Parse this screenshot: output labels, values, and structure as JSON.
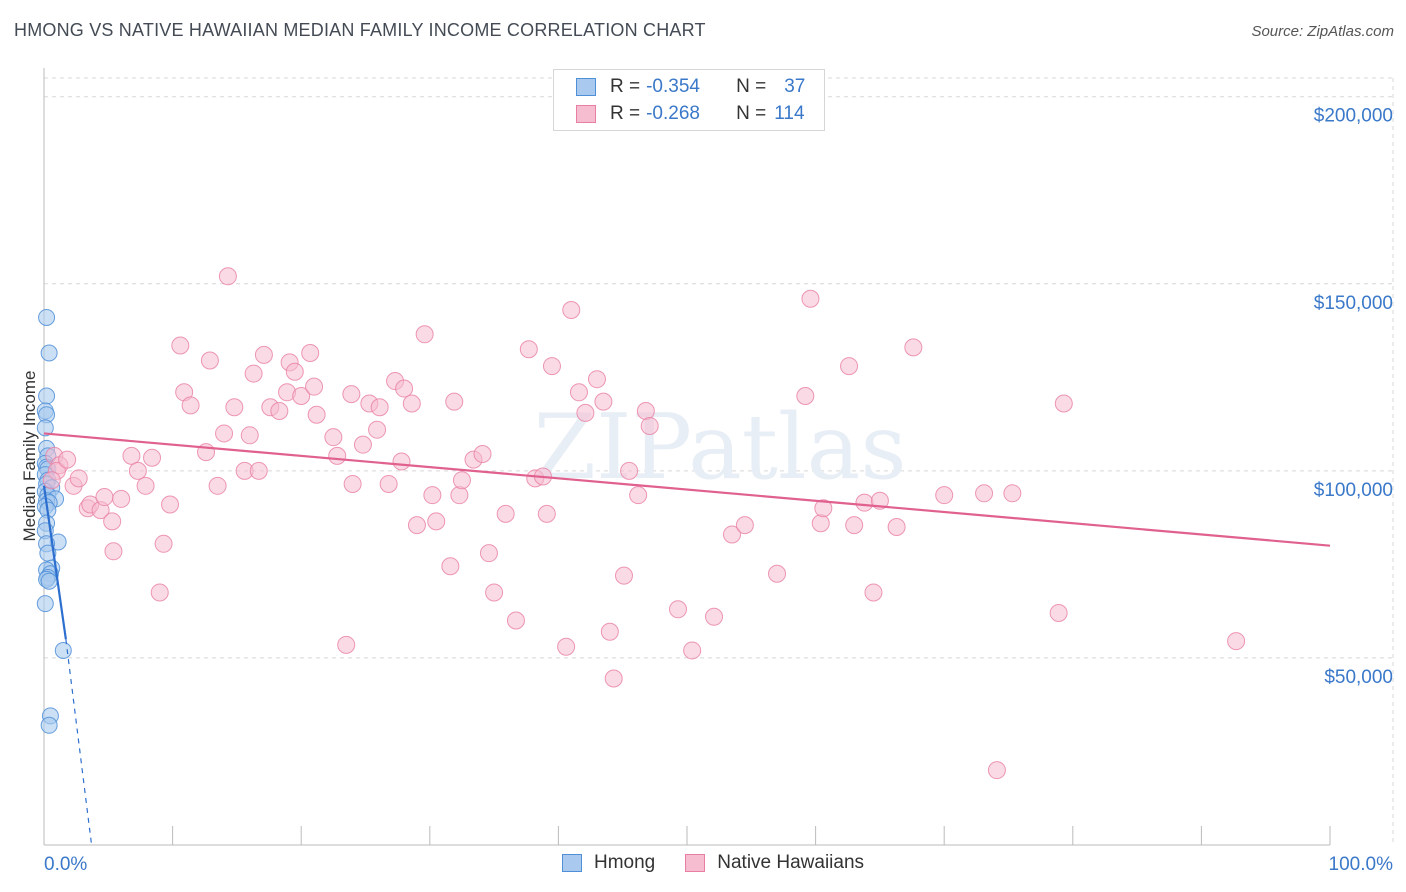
{
  "header": {
    "title": "HMONG VS NATIVE HAWAIIAN MEDIAN FAMILY INCOME CORRELATION CHART",
    "source": "Source: ZipAtlas.com"
  },
  "legend": {
    "rows": [
      {
        "r_label": "R =",
        "r_value": "-0.354",
        "n_label": "N =",
        "n_value": "37"
      },
      {
        "r_label": "R =",
        "r_value": "-0.268",
        "n_label": "N =",
        "n_value": "114"
      }
    ],
    "bottom": [
      "Hmong",
      "Native Hawaiians"
    ]
  },
  "colors": {
    "hmong_fill": "#a9c9ee",
    "hmong_stroke": "#4f8fd8",
    "hmong_line": "#2d6fcf",
    "hawaiian_fill": "#f6bcd0",
    "hawaiian_stroke": "#e87fa3",
    "hawaiian_line": "#e0608e",
    "axis_text": "#3a78c9",
    "grid": "#d8d8d8"
  },
  "chart_data": {
    "type": "scatter",
    "title": "HMONG VS NATIVE HAWAIIAN MEDIAN FAMILY INCOME CORRELATION CHART",
    "xlabel": "",
    "ylabel": "Median Family Income",
    "xlim": [
      0,
      100
    ],
    "ylim": [
      0,
      205000
    ],
    "x_tick_labels": [
      "0.0%",
      "100.0%"
    ],
    "y_ticks": [
      50000,
      100000,
      150000,
      200000
    ],
    "y_tick_labels": [
      "$50,000",
      "$100,000",
      "$150,000",
      "$200,000"
    ],
    "watermark": "ZIPatlas",
    "series": [
      {
        "name": "Hmong",
        "r": -0.354,
        "n": 37,
        "trend": {
          "x": [
            0.0,
            1.7
          ],
          "y": [
            96000,
            55000
          ],
          "dashed_to": [
            3.7,
            0
          ]
        },
        "points": [
          [
            0.2,
            141000
          ],
          [
            0.4,
            131500
          ],
          [
            0.2,
            120000
          ],
          [
            0.1,
            116000
          ],
          [
            0.2,
            115000
          ],
          [
            0.1,
            111500
          ],
          [
            0.2,
            106000
          ],
          [
            0.3,
            104000
          ],
          [
            0.1,
            102000
          ],
          [
            0.2,
            101000
          ],
          [
            0.3,
            100500
          ],
          [
            0.1,
            99000
          ],
          [
            0.3,
            97500
          ],
          [
            0.2,
            96500
          ],
          [
            0.6,
            95500
          ],
          [
            0.1,
            94500
          ],
          [
            0.3,
            93500
          ],
          [
            0.9,
            92500
          ],
          [
            0.2,
            92000
          ],
          [
            0.4,
            91500
          ],
          [
            0.1,
            90500
          ],
          [
            0.3,
            89500
          ],
          [
            0.2,
            86000
          ],
          [
            0.1,
            84000
          ],
          [
            1.1,
            81000
          ],
          [
            0.2,
            80500
          ],
          [
            0.3,
            78000
          ],
          [
            0.6,
            74000
          ],
          [
            0.2,
            73500
          ],
          [
            0.5,
            72500
          ],
          [
            0.3,
            71500
          ],
          [
            0.2,
            71000
          ],
          [
            0.4,
            70500
          ],
          [
            0.1,
            64500
          ],
          [
            1.5,
            52000
          ],
          [
            0.5,
            34500
          ],
          [
            0.4,
            32000
          ]
        ]
      },
      {
        "name": "Native Hawaiians",
        "r": -0.268,
        "n": 114,
        "trend": {
          "x": [
            0,
            100
          ],
          "y": [
            110000,
            80000
          ]
        },
        "points": [
          [
            0.8,
            104000
          ],
          [
            1.2,
            101500
          ],
          [
            1.0,
            100000
          ],
          [
            1.8,
            103000
          ],
          [
            2.3,
            96000
          ],
          [
            2.7,
            98000
          ],
          [
            3.4,
            90000
          ],
          [
            3.6,
            91000
          ],
          [
            4.4,
            89500
          ],
          [
            4.7,
            93000
          ],
          [
            5.3,
            86500
          ],
          [
            5.4,
            78500
          ],
          [
            6.0,
            92500
          ],
          [
            6.8,
            104000
          ],
          [
            7.3,
            100000
          ],
          [
            7.9,
            96000
          ],
          [
            8.4,
            103500
          ],
          [
            9.0,
            67500
          ],
          [
            9.3,
            80500
          ],
          [
            9.8,
            91000
          ],
          [
            10.6,
            133500
          ],
          [
            10.9,
            121000
          ],
          [
            11.4,
            117500
          ],
          [
            12.6,
            105000
          ],
          [
            12.9,
            129500
          ],
          [
            13.5,
            96000
          ],
          [
            14.0,
            110000
          ],
          [
            14.3,
            152000
          ],
          [
            14.8,
            117000
          ],
          [
            15.6,
            100000
          ],
          [
            16.0,
            109500
          ],
          [
            16.3,
            126000
          ],
          [
            16.7,
            100000
          ],
          [
            17.1,
            131000
          ],
          [
            17.6,
            117000
          ],
          [
            18.3,
            116000
          ],
          [
            18.9,
            121000
          ],
          [
            19.1,
            129000
          ],
          [
            19.5,
            126500
          ],
          [
            20.0,
            120000
          ],
          [
            20.7,
            131500
          ],
          [
            21.0,
            122500
          ],
          [
            21.2,
            115000
          ],
          [
            22.5,
            109000
          ],
          [
            22.8,
            104000
          ],
          [
            23.5,
            53500
          ],
          [
            23.9,
            120500
          ],
          [
            24.0,
            96500
          ],
          [
            24.8,
            107000
          ],
          [
            25.3,
            118000
          ],
          [
            25.9,
            111000
          ],
          [
            26.1,
            117000
          ],
          [
            26.8,
            96500
          ],
          [
            27.3,
            124000
          ],
          [
            27.8,
            102500
          ],
          [
            28.0,
            122000
          ],
          [
            28.6,
            118000
          ],
          [
            29.0,
            85500
          ],
          [
            29.6,
            136500
          ],
          [
            30.2,
            93500
          ],
          [
            30.5,
            86500
          ],
          [
            31.6,
            74500
          ],
          [
            31.9,
            118500
          ],
          [
            32.3,
            93500
          ],
          [
            32.5,
            97500
          ],
          [
            33.4,
            103000
          ],
          [
            34.1,
            104500
          ],
          [
            34.6,
            78000
          ],
          [
            35.0,
            67500
          ],
          [
            35.9,
            88500
          ],
          [
            36.7,
            60000
          ],
          [
            37.7,
            132500
          ],
          [
            38.2,
            98000
          ],
          [
            38.8,
            98500
          ],
          [
            39.1,
            88500
          ],
          [
            39.5,
            128000
          ],
          [
            40.6,
            53000
          ],
          [
            41.0,
            143000
          ],
          [
            41.6,
            121000
          ],
          [
            42.1,
            115500
          ],
          [
            43.0,
            124500
          ],
          [
            43.5,
            118500
          ],
          [
            44.0,
            57000
          ],
          [
            44.3,
            44500
          ],
          [
            45.1,
            72000
          ],
          [
            45.5,
            100000
          ],
          [
            46.2,
            93500
          ],
          [
            46.8,
            116000
          ],
          [
            47.1,
            112000
          ],
          [
            49.3,
            63000
          ],
          [
            50.4,
            52000
          ],
          [
            52.1,
            61000
          ],
          [
            53.5,
            83000
          ],
          [
            54.5,
            85500
          ],
          [
            57.0,
            72500
          ],
          [
            59.2,
            120000
          ],
          [
            59.6,
            146000
          ],
          [
            60.4,
            86000
          ],
          [
            60.6,
            90000
          ],
          [
            62.6,
            128000
          ],
          [
            63.0,
            85500
          ],
          [
            63.8,
            91500
          ],
          [
            64.5,
            67500
          ],
          [
            65.0,
            92000
          ],
          [
            66.3,
            85000
          ],
          [
            67.6,
            133000
          ],
          [
            70.0,
            93500
          ],
          [
            73.1,
            94000
          ],
          [
            74.1,
            20000
          ],
          [
            75.3,
            94000
          ],
          [
            78.9,
            62000
          ],
          [
            79.3,
            118000
          ],
          [
            92.7,
            54500
          ],
          [
            0.6,
            97500
          ]
        ]
      }
    ]
  }
}
